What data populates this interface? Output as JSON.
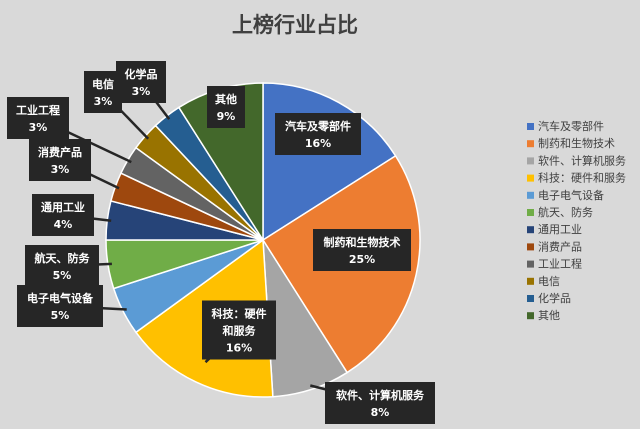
{
  "chart_data": {
    "type": "pie",
    "title": "上榜行业占比",
    "legend_position": "right",
    "slices": [
      {
        "name": "汽车及零部件",
        "value": 16,
        "label": "16%",
        "color": "#4472c4",
        "label_lines": [
          "汽车及零部件",
          "16%"
        ]
      },
      {
        "name": "制药和生物技术",
        "value": 25,
        "label": "25%",
        "color": "#ed7d31",
        "label_lines": [
          "制药和生物技术",
          "25%"
        ]
      },
      {
        "name": "软件、计算机服务",
        "value": 8,
        "label": "8%",
        "color": "#a5a5a5",
        "label_lines": [
          "软件、计算机服务",
          "8%"
        ]
      },
      {
        "name": "科技：硬件和服务",
        "value": 16,
        "label": "16%",
        "color": "#ffc000",
        "label_lines": [
          "科技：硬件",
          "和服务",
          "16%"
        ]
      },
      {
        "name": "电子电气设备",
        "value": 5,
        "label": "5%",
        "color": "#5b9bd5",
        "label_lines": [
          "电子电气设备",
          "5%"
        ]
      },
      {
        "name": "航天、防务",
        "value": 5,
        "label": "5%",
        "color": "#70ad47",
        "label_lines": [
          "航天、防务",
          "5%"
        ]
      },
      {
        "name": "通用工业",
        "value": 4,
        "label": "4%",
        "color": "#264478",
        "label_lines": [
          "通用工业",
          "4%"
        ]
      },
      {
        "name": "消费产品",
        "value": 3,
        "label": "3%",
        "color": "#9e480e",
        "label_lines": [
          "消费产品",
          "3%"
        ]
      },
      {
        "name": "工业工程",
        "value": 3,
        "label": "3%",
        "color": "#636363",
        "label_lines": [
          "工业工程",
          "3%"
        ]
      },
      {
        "name": "电信",
        "value": 3,
        "label": "3%",
        "color": "#997300",
        "label_lines": [
          "电信",
          "3%"
        ]
      },
      {
        "name": "化学品",
        "value": 3,
        "label": "3%",
        "color": "#255e91",
        "label_lines": [
          "化学品",
          "3%"
        ]
      },
      {
        "name": "其他",
        "value": 9,
        "label": "9%",
        "color": "#43682b",
        "label_lines": [
          "其他",
          "9%"
        ]
      }
    ]
  }
}
